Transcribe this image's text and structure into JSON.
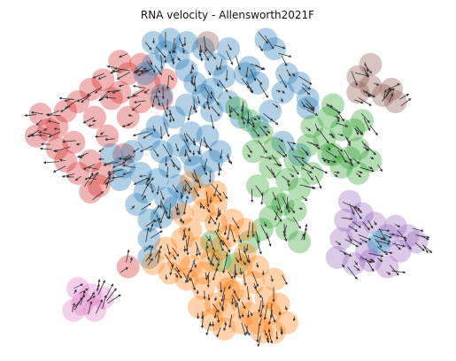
{
  "chart_data": {
    "type": "scatter",
    "title": "RNA velocity - Allensworth2021F",
    "xlabel": "",
    "ylabel": "",
    "xlim": [
      0,
      100
    ],
    "ylim": [
      0,
      100
    ],
    "grid": false,
    "axes_visible": false,
    "legend": "none",
    "arrow_color": "#333333",
    "point_opacity": 0.35,
    "series": [
      {
        "color": "#d62728",
        "points": [
          [
            9,
            69
          ],
          [
            11,
            74
          ],
          [
            14,
            77
          ],
          [
            17,
            81
          ],
          [
            20,
            84
          ],
          [
            22,
            78
          ],
          [
            18,
            72
          ],
          [
            13,
            64
          ],
          [
            9,
            62
          ],
          [
            7,
            68
          ],
          [
            5,
            73
          ],
          [
            4,
            66
          ],
          [
            11,
            58
          ],
          [
            17,
            58
          ],
          [
            20,
            54
          ],
          [
            14,
            54
          ],
          [
            24,
            80
          ],
          [
            26,
            86
          ],
          [
            24,
            90
          ],
          [
            29,
            89
          ],
          [
            31,
            83
          ],
          [
            35,
            84
          ],
          [
            34,
            78
          ],
          [
            29,
            77
          ],
          [
            26,
            72
          ],
          [
            21,
            66
          ],
          [
            25,
            60
          ],
          [
            19,
            50
          ],
          [
            17,
            48
          ],
          [
            26,
            24
          ]
        ]
      },
      {
        "color": "#1f77b4",
        "points": [
          [
            32,
            89
          ],
          [
            35,
            93
          ],
          [
            38,
            91
          ],
          [
            40,
            87
          ],
          [
            42,
            83
          ],
          [
            44,
            79
          ],
          [
            40,
            76
          ],
          [
            37,
            72
          ],
          [
            33,
            69
          ],
          [
            31,
            65
          ],
          [
            34,
            61
          ],
          [
            36,
            56
          ],
          [
            33,
            52
          ],
          [
            30,
            48
          ],
          [
            28,
            44
          ],
          [
            31,
            39
          ],
          [
            34,
            40
          ],
          [
            37,
            43
          ],
          [
            40,
            48
          ],
          [
            44,
            53
          ],
          [
            46,
            58
          ],
          [
            48,
            61
          ],
          [
            45,
            66
          ],
          [
            41,
            67
          ],
          [
            38,
            63
          ],
          [
            34,
            79
          ],
          [
            30,
            86
          ],
          [
            36,
            97
          ],
          [
            32,
            96
          ],
          [
            40,
            96
          ],
          [
            44,
            94
          ],
          [
            47,
            89
          ],
          [
            49,
            85
          ],
          [
            46,
            81
          ],
          [
            50,
            77
          ],
          [
            46,
            74
          ],
          [
            41,
            60
          ],
          [
            42,
            56
          ],
          [
            38,
            50
          ],
          [
            35,
            46
          ],
          [
            29,
            54
          ],
          [
            27,
            61
          ],
          [
            22,
            60
          ],
          [
            24,
            52
          ],
          [
            59,
            97
          ],
          [
            61,
            94
          ],
          [
            55,
            88
          ],
          [
            57,
            83
          ],
          [
            53,
            72
          ],
          [
            57,
            69
          ],
          [
            60,
            74
          ],
          [
            64,
            86
          ],
          [
            67,
            83
          ],
          [
            69,
            78
          ],
          [
            63,
            64
          ],
          [
            67,
            60
          ],
          [
            69,
            75
          ],
          [
            63,
            80
          ],
          [
            54,
            86
          ],
          [
            50,
            94
          ],
          [
            31,
            27
          ],
          [
            31,
            33
          ],
          [
            25,
            56
          ]
        ]
      },
      {
        "color": "#2ca02c",
        "points": [
          [
            52,
            75
          ],
          [
            55,
            71
          ],
          [
            58,
            67
          ],
          [
            56,
            61
          ],
          [
            60,
            56
          ],
          [
            64,
            52
          ],
          [
            67,
            49
          ],
          [
            70,
            54
          ],
          [
            66,
            58
          ],
          [
            73,
            65
          ],
          [
            75,
            60
          ],
          [
            77,
            56
          ],
          [
            79,
            59
          ],
          [
            81,
            54
          ],
          [
            77,
            68
          ],
          [
            74,
            72
          ],
          [
            70,
            69
          ],
          [
            69,
            63
          ],
          [
            61,
            46
          ],
          [
            60,
            40
          ],
          [
            58,
            36
          ],
          [
            63,
            44
          ],
          [
            57,
            50
          ],
          [
            61,
            62
          ],
          [
            81,
            62
          ],
          [
            84,
            58
          ],
          [
            75,
            76
          ],
          [
            82,
            71
          ],
          [
            80,
            68
          ],
          [
            66,
            42
          ],
          [
            64,
            36
          ],
          [
            67,
            32
          ],
          [
            55,
            32
          ],
          [
            52,
            25
          ],
          [
            48,
            26
          ],
          [
            46,
            32
          ],
          [
            74,
            60
          ]
        ]
      },
      {
        "color": "#ff7f0e",
        "points": [
          [
            35,
            30
          ],
          [
            38,
            26
          ],
          [
            41,
            24
          ],
          [
            44,
            22
          ],
          [
            46,
            26
          ],
          [
            48,
            30
          ],
          [
            50,
            34
          ],
          [
            47,
            38
          ],
          [
            44,
            42
          ],
          [
            41,
            36
          ],
          [
            39,
            33
          ],
          [
            43,
            30
          ],
          [
            44,
            47
          ],
          [
            41,
            51
          ],
          [
            47,
            48
          ],
          [
            49,
            20
          ],
          [
            51,
            16
          ],
          [
            53,
            13
          ],
          [
            55,
            9
          ],
          [
            57,
            6
          ],
          [
            60,
            9
          ],
          [
            59,
            14
          ],
          [
            56,
            19
          ],
          [
            53,
            24
          ],
          [
            50,
            17
          ],
          [
            49,
            10
          ],
          [
            47,
            12
          ],
          [
            54,
            28
          ],
          [
            57,
            24
          ],
          [
            61,
            20
          ],
          [
            62,
            12
          ],
          [
            64,
            6
          ],
          [
            61,
            3
          ],
          [
            58,
            3
          ],
          [
            53,
            6
          ],
          [
            44,
            17
          ],
          [
            40,
            20
          ],
          [
            36,
            22
          ],
          [
            32,
            25
          ],
          [
            51,
            39
          ],
          [
            54,
            36
          ],
          [
            47,
            44
          ],
          [
            39,
            41
          ],
          [
            49,
            4
          ],
          [
            46,
            7
          ],
          [
            43,
            11
          ]
        ]
      },
      {
        "color": "#9467bd",
        "points": [
          [
            79,
            45
          ],
          [
            82,
            41
          ],
          [
            85,
            38
          ],
          [
            88,
            34
          ],
          [
            86,
            31
          ],
          [
            83,
            29
          ],
          [
            80,
            25
          ],
          [
            76,
            27
          ],
          [
            77,
            33
          ],
          [
            81,
            35
          ],
          [
            84,
            26
          ],
          [
            88,
            24
          ],
          [
            91,
            29
          ],
          [
            93,
            34
          ],
          [
            90,
            37
          ],
          [
            95,
            32
          ],
          [
            78,
            39
          ]
        ]
      },
      {
        "color": "#8c564b",
        "points": [
          [
            45,
            96
          ],
          [
            81,
            85
          ],
          [
            84,
            82
          ],
          [
            87,
            79
          ],
          [
            90,
            77
          ],
          [
            89,
            81
          ],
          [
            84,
            89
          ],
          [
            81,
            80
          ]
        ]
      },
      {
        "color": "#e377c2",
        "points": [
          [
            14,
            17
          ],
          [
            17,
            15
          ],
          [
            20,
            14
          ],
          [
            15,
            12
          ],
          [
            18,
            10
          ],
          [
            13,
            10
          ]
        ]
      },
      {
        "color": "#17becf",
        "points": [
          [
            86,
            32
          ]
        ]
      }
    ]
  }
}
